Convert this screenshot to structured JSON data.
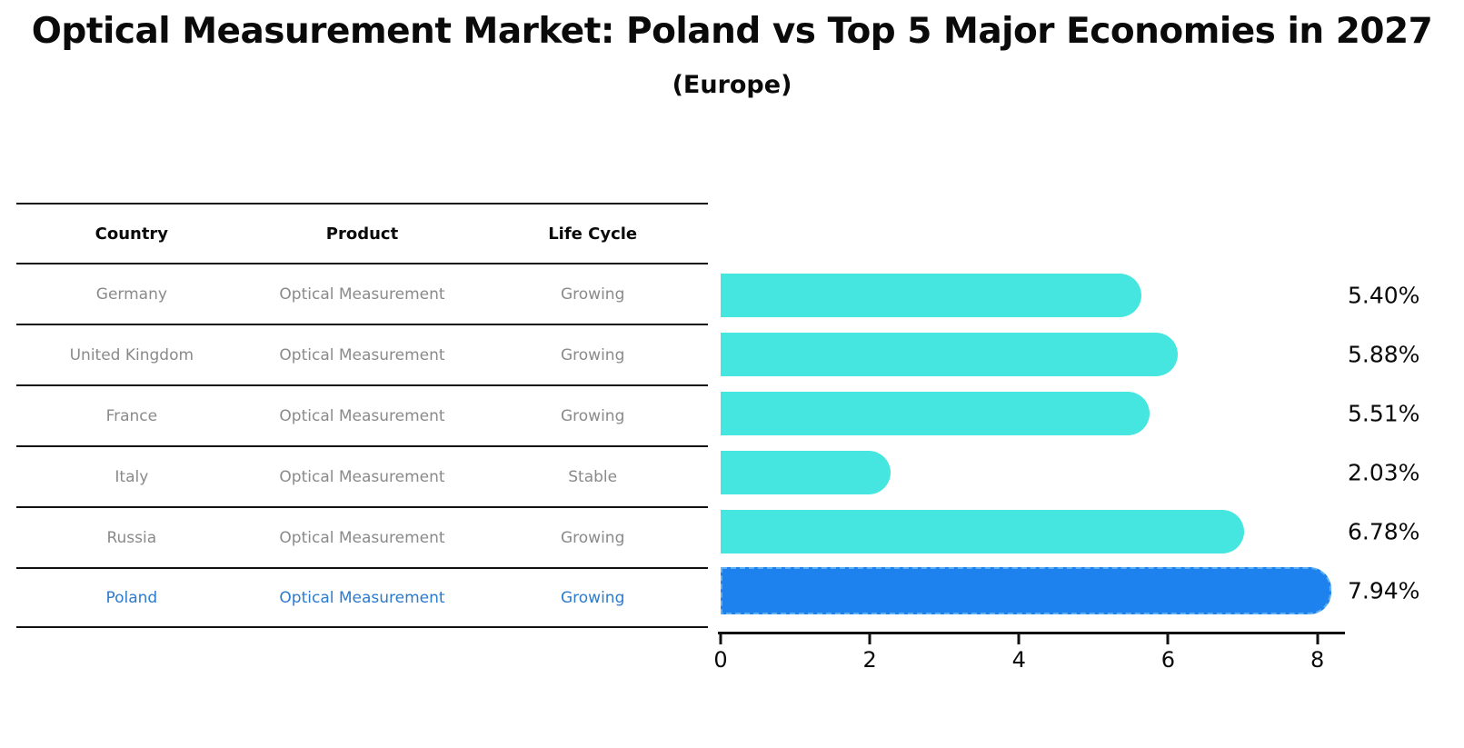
{
  "title": "Optical Measurement Market: Poland vs Top 5 Major Economies in 2027",
  "subtitle": "(Europe)",
  "table": {
    "headers": [
      "Country",
      "Product",
      "Life Cycle"
    ],
    "rows": [
      {
        "country": "Germany",
        "product": "Optical Measurement",
        "life_cycle": "Growing",
        "highlight": false
      },
      {
        "country": "United Kingdom",
        "product": "Optical Measurement",
        "life_cycle": "Growing",
        "highlight": false
      },
      {
        "country": "France",
        "product": "Optical Measurement",
        "life_cycle": "Growing",
        "highlight": false
      },
      {
        "country": "Italy",
        "product": "Optical Measurement",
        "life_cycle": "Stable",
        "highlight": false
      },
      {
        "country": "Russia",
        "product": "Optical Measurement",
        "life_cycle": "Growing",
        "highlight": false
      },
      {
        "country": "Poland",
        "product": "Optical Measurement",
        "life_cycle": "Growing",
        "highlight": true
      }
    ]
  },
  "chart_data": {
    "type": "bar",
    "orientation": "horizontal",
    "title": "Optical Measurement Market: Poland vs Top 5 Major Economies in 2027 (Europe)",
    "categories": [
      "Germany",
      "United Kingdom",
      "France",
      "Italy",
      "Russia",
      "Poland"
    ],
    "values": [
      5.4,
      5.88,
      5.51,
      2.03,
      6.78,
      7.94
    ],
    "value_labels": [
      "5.40%",
      "5.88%",
      "5.51%",
      "2.03%",
      "6.78%",
      "7.94%"
    ],
    "unit": "%",
    "highlight_index": 5,
    "xlim": [
      0,
      8.37
    ],
    "xticks": [
      0,
      2,
      4,
      6,
      8
    ],
    "grid": false,
    "legend": false,
    "colors": {
      "bar": "#45e5e0",
      "highlight_bar": "#1e82ee",
      "highlight_border": "#5fb0f2",
      "text": "#0a0a0a",
      "muted_text": "#8a8a8a",
      "link_text": "#2b7bce"
    }
  }
}
